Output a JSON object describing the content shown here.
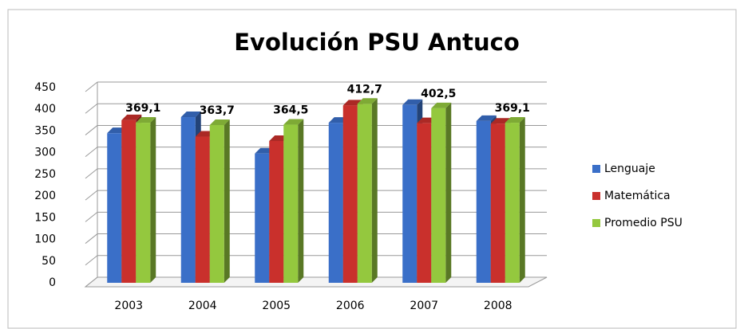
{
  "chart_data": {
    "type": "bar",
    "title": "Evolución PSU Antuco",
    "categories": [
      "2003",
      "2004",
      "2005",
      "2006",
      "2007",
      "2008"
    ],
    "series": [
      {
        "name": "Lenguaje",
        "color": "#3a6fc8",
        "values": [
          345,
          382,
          298,
          369,
          410,
          373
        ]
      },
      {
        "name": "Matemática",
        "color": "#c9302c",
        "values": [
          375,
          337,
          327,
          409,
          368,
          367
        ]
      },
      {
        "name": "Promedio PSU",
        "color": "#94c83e",
        "values": [
          369.1,
          363.7,
          364.5,
          412.7,
          402.5,
          369.1
        ],
        "value_labels": [
          "369,1",
          "363,7",
          "364,5",
          "412,7",
          "402,5",
          "369,1"
        ]
      }
    ],
    "ylim": [
      0,
      450
    ],
    "yticks": [
      0,
      50,
      100,
      150,
      200,
      250,
      300,
      350,
      400,
      450
    ],
    "grid": true,
    "legend": "right"
  }
}
